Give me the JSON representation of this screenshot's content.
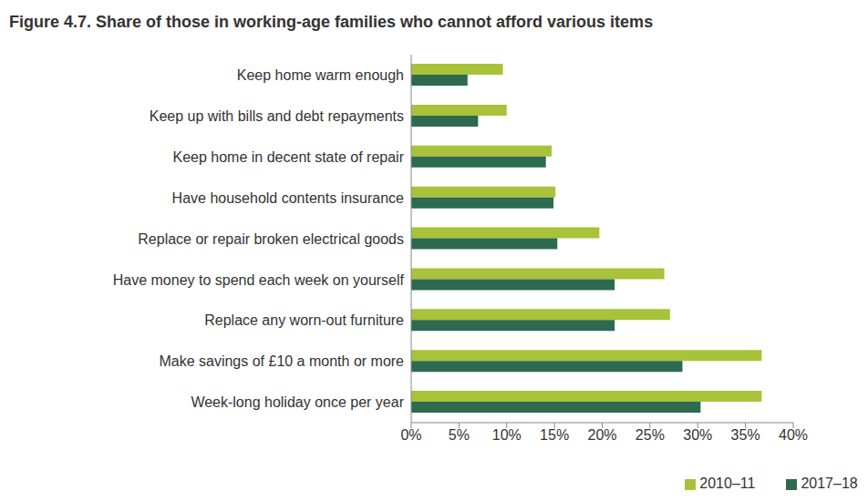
{
  "chart_data": {
    "type": "bar",
    "title": "Figure 4.7. Share of those in working-age families who cannot afford various items",
    "orientation": "horizontal",
    "categories": [
      "Keep home warm enough",
      "Keep up with bills and debt repayments",
      "Keep home in decent state of repair",
      "Have household contents insurance",
      "Replace or repair broken electrical goods",
      "Have money to spend each week on yourself",
      "Replace any worn-out furniture",
      "Make savings of £10 a month or more",
      "Week-long holiday once per year"
    ],
    "series": [
      {
        "name": "2010–11",
        "color": "#a8c23a",
        "values": [
          9.6,
          10.0,
          14.7,
          15.1,
          19.7,
          26.5,
          27.1,
          36.7,
          36.7
        ]
      },
      {
        "name": "2017–18",
        "color": "#2d6a4f",
        "values": [
          5.9,
          7.0,
          14.1,
          14.9,
          15.3,
          21.3,
          21.3,
          28.4,
          30.3
        ]
      }
    ],
    "xlim": [
      0,
      40
    ],
    "xticks": [
      {
        "value": 0,
        "label": "0%"
      },
      {
        "value": 5,
        "label": "5%"
      },
      {
        "value": 10,
        "label": "10%"
      },
      {
        "value": 15,
        "label": "15%"
      },
      {
        "value": 20,
        "label": "20%"
      },
      {
        "value": 25,
        "label": "25%"
      },
      {
        "value": 30,
        "label": "30%"
      },
      {
        "value": 35,
        "label": "35%"
      },
      {
        "value": 40,
        "label": "40%"
      }
    ],
    "grid": false,
    "legend": "bottom"
  }
}
